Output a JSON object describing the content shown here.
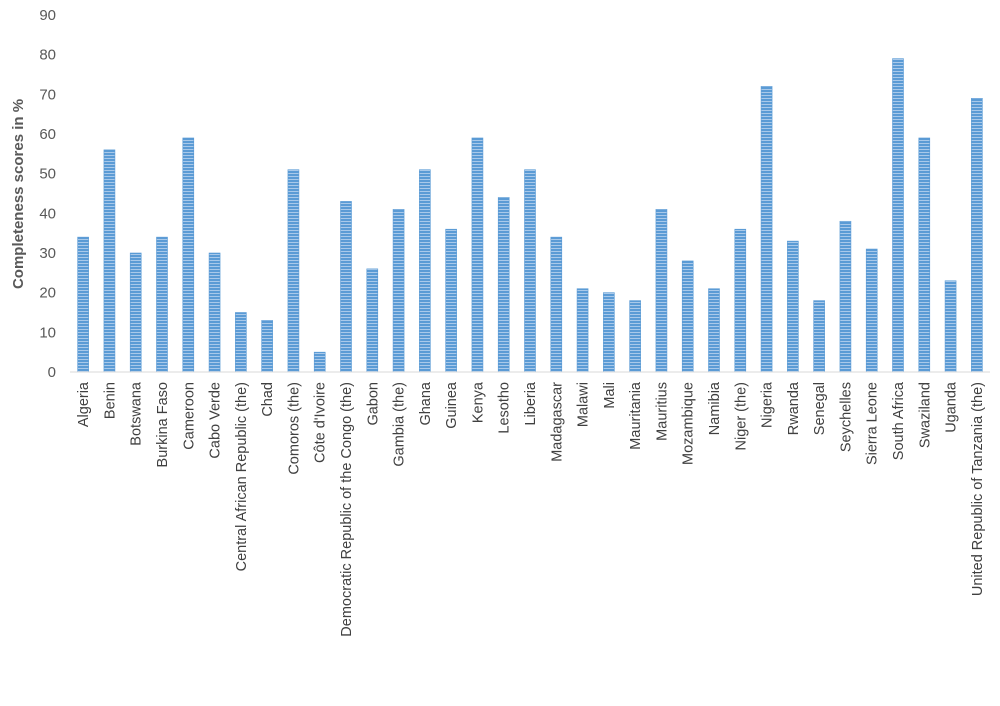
{
  "chart_data": {
    "type": "bar",
    "title": "",
    "xlabel": "",
    "ylabel": "Completeness scores in %",
    "ylim": [
      0,
      90
    ],
    "yticks": [
      0,
      10,
      20,
      30,
      40,
      50,
      60,
      70,
      80,
      90
    ],
    "grid": false,
    "legend": "none",
    "bar_color": "#5b9bd5",
    "categories": [
      "Algeria",
      "Benin",
      "Botswana",
      "Burkina Faso",
      "Cameroon",
      "Cabo Verde",
      "Central African Republic (the)",
      "Chad",
      "Comoros (the)",
      "Côte d'Ivoire",
      "Democratic Republic of the Congo (the)",
      "Gabon",
      "Gambia (the)",
      "Ghana",
      "Guinea",
      "Kenya",
      "Lesotho",
      "Liberia",
      "Madagascar",
      "Malawi",
      "Mali",
      "Mauritania",
      "Mauritius",
      "Mozambique",
      "Namibia",
      "Niger (the)",
      "Nigeria",
      "Rwanda",
      "Senegal",
      "Seychelles",
      "Sierra Leone",
      "South Africa",
      "Swaziland",
      "Uganda",
      "United Republic of Tanzania (the)"
    ],
    "values": [
      34,
      56,
      30,
      34,
      59,
      30,
      15,
      13,
      51,
      5,
      43,
      26,
      41,
      51,
      36,
      59,
      44,
      51,
      34,
      21,
      20,
      18,
      41,
      28,
      21,
      36,
      72,
      33,
      18,
      38,
      31,
      79,
      59,
      23,
      69
    ]
  }
}
